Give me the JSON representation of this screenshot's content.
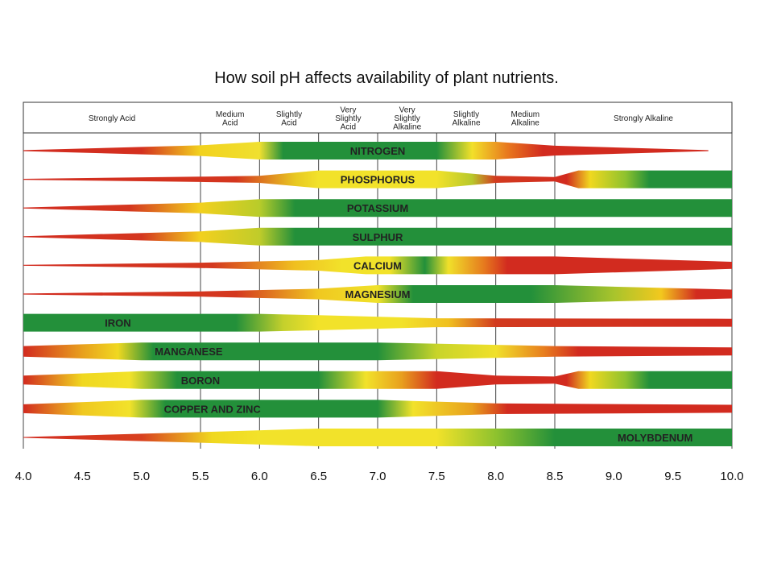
{
  "title": "How soil pH affects availability of plant nutrients.",
  "chart_data": {
    "type": "bar",
    "title": "How soil pH affects availability of plant nutrients.",
    "xlim": [
      4.0,
      10.0
    ],
    "x_ticks": [
      "4.0",
      "4.5",
      "5.0",
      "5.5",
      "6.0",
      "6.5",
      "7.0",
      "7.5",
      "8.0",
      "8.5",
      "9.0",
      "9.5",
      "10.0"
    ],
    "zones": [
      {
        "lines": [
          "Strongly Acid"
        ],
        "from": 4.0,
        "to": 5.5
      },
      {
        "lines": [
          "Medium",
          "Acid"
        ],
        "from": 5.5,
        "to": 6.0
      },
      {
        "lines": [
          "Slightly",
          "Acid"
        ],
        "from": 6.0,
        "to": 6.5
      },
      {
        "lines": [
          "Very",
          "Slightly",
          "Acid"
        ],
        "from": 6.5,
        "to": 7.0
      },
      {
        "lines": [
          "Very",
          "Slightly",
          "Alkaline"
        ],
        "from": 7.0,
        "to": 7.5
      },
      {
        "lines": [
          "Slightly",
          "Alkaline"
        ],
        "from": 7.5,
        "to": 8.0
      },
      {
        "lines": [
          "Medium",
          "Alkaline"
        ],
        "from": 8.0,
        "to": 8.5
      },
      {
        "lines": [
          "Strongly Alkaline"
        ],
        "from": 8.5,
        "to": 10.0
      }
    ],
    "series": [
      {
        "name": "NITROGEN",
        "label_ph": 7.0,
        "width": [
          [
            4.0,
            0.05
          ],
          [
            5.5,
            0.6
          ],
          [
            6.0,
            1
          ],
          [
            8.0,
            1
          ],
          [
            8.5,
            0.55
          ],
          [
            9.8,
            0.05
          ]
        ],
        "color": [
          [
            4.0,
            "#d22b1f"
          ],
          [
            5.0,
            "#d4301f"
          ],
          [
            5.5,
            "#f2d21e"
          ],
          [
            6.0,
            "#f0e030"
          ],
          [
            6.2,
            "#23903a"
          ],
          [
            7.5,
            "#23903a"
          ],
          [
            7.8,
            "#f2e02a"
          ],
          [
            8.1,
            "#e8781e"
          ],
          [
            8.4,
            "#d22b1f"
          ],
          [
            10.0,
            "#d22b1f"
          ]
        ]
      },
      {
        "name": "PHOSPHORUS",
        "label_ph": 7.0,
        "width": [
          [
            4.0,
            0.05
          ],
          [
            5.5,
            0.3
          ],
          [
            6.0,
            0.4
          ],
          [
            6.5,
            1
          ],
          [
            7.5,
            1
          ],
          [
            8.0,
            0.4
          ],
          [
            8.5,
            0.25
          ],
          [
            8.7,
            1
          ],
          [
            10.0,
            1
          ]
        ],
        "color": [
          [
            4.0,
            "#d22b1f"
          ],
          [
            5.8,
            "#d4361f"
          ],
          [
            6.3,
            "#e8c822"
          ],
          [
            6.5,
            "#f2e22a"
          ],
          [
            7.5,
            "#f2e22a"
          ],
          [
            7.8,
            "#b8c82c"
          ],
          [
            8.0,
            "#d23a1f"
          ],
          [
            8.6,
            "#d22b1f"
          ],
          [
            8.8,
            "#f0d820"
          ],
          [
            9.1,
            "#8ec22e"
          ],
          [
            9.3,
            "#23903a"
          ],
          [
            10.0,
            "#23903a"
          ]
        ]
      },
      {
        "name": "POTASSIUM",
        "label_ph": 7.0,
        "width": [
          [
            4.0,
            0.05
          ],
          [
            5.5,
            0.6
          ],
          [
            6.0,
            1
          ],
          [
            10.0,
            1
          ]
        ],
        "color": [
          [
            4.0,
            "#d22b1f"
          ],
          [
            4.9,
            "#d4361f"
          ],
          [
            5.5,
            "#f2d01e"
          ],
          [
            6.0,
            "#b8cc2a"
          ],
          [
            6.3,
            "#23903a"
          ],
          [
            10.0,
            "#23903a"
          ]
        ]
      },
      {
        "name": "SULPHUR",
        "label_ph": 7.0,
        "width": [
          [
            4.0,
            0.05
          ],
          [
            5.5,
            0.6
          ],
          [
            6.0,
            1
          ],
          [
            10.0,
            1
          ]
        ],
        "color": [
          [
            4.0,
            "#d22b1f"
          ],
          [
            5.0,
            "#d4361f"
          ],
          [
            5.5,
            "#f2d01e"
          ],
          [
            6.0,
            "#c0cc2a"
          ],
          [
            6.3,
            "#23903a"
          ],
          [
            10.0,
            "#23903a"
          ]
        ]
      },
      {
        "name": "CALCIUM",
        "label_ph": 7.0,
        "width": [
          [
            4.0,
            0.05
          ],
          [
            5.5,
            0.3
          ],
          [
            6.5,
            0.6
          ],
          [
            6.9,
            1
          ],
          [
            8.5,
            1
          ],
          [
            10.0,
            0.4
          ]
        ],
        "color": [
          [
            4.0,
            "#d22b1f"
          ],
          [
            5.6,
            "#d4381f"
          ],
          [
            6.3,
            "#f0c020"
          ],
          [
            6.7,
            "#f2e22a"
          ],
          [
            7.1,
            "#f2e22a"
          ],
          [
            7.4,
            "#23903a"
          ],
          [
            7.6,
            "#f0e02a"
          ],
          [
            7.9,
            "#e67a1e"
          ],
          [
            8.1,
            "#d22b1f"
          ],
          [
            10.0,
            "#d22b1f"
          ]
        ]
      },
      {
        "name": "MAGNESIUM",
        "label_ph": 7.0,
        "width": [
          [
            4.0,
            0.05
          ],
          [
            5.5,
            0.3
          ],
          [
            6.5,
            0.6
          ],
          [
            7.0,
            1
          ],
          [
            8.5,
            1
          ],
          [
            10.0,
            0.5
          ]
        ],
        "color": [
          [
            4.0,
            "#d22b1f"
          ],
          [
            5.8,
            "#d4381f"
          ],
          [
            6.5,
            "#f0c820"
          ],
          [
            7.0,
            "#f0e22a"
          ],
          [
            7.3,
            "#23903a"
          ],
          [
            8.3,
            "#23903a"
          ],
          [
            9.0,
            "#a8c42c"
          ],
          [
            9.4,
            "#f2c81e"
          ],
          [
            9.7,
            "#d22b1f"
          ],
          [
            10.0,
            "#d22b1f"
          ]
        ]
      },
      {
        "name": "IRON",
        "label_ph": 4.8,
        "width": [
          [
            4.0,
            1
          ],
          [
            6.0,
            1
          ],
          [
            6.5,
            0.85
          ],
          [
            7.5,
            0.5
          ],
          [
            10.0,
            0.45
          ]
        ],
        "color": [
          [
            4.0,
            "#23903a"
          ],
          [
            5.8,
            "#23903a"
          ],
          [
            6.2,
            "#c4d02c"
          ],
          [
            6.5,
            "#f2e22a"
          ],
          [
            7.2,
            "#f2e22a"
          ],
          [
            7.6,
            "#f0c020"
          ],
          [
            8.0,
            "#d23a1f"
          ],
          [
            10.0,
            "#d22b1f"
          ]
        ]
      },
      {
        "name": "MANGANESE",
        "label_ph": 5.4,
        "width": [
          [
            4.0,
            0.6
          ],
          [
            4.5,
            0.8
          ],
          [
            5.0,
            1
          ],
          [
            7.0,
            1
          ],
          [
            8.5,
            0.6
          ],
          [
            10.0,
            0.45
          ]
        ],
        "color": [
          [
            4.0,
            "#d22b1f"
          ],
          [
            4.5,
            "#e8a01e"
          ],
          [
            4.8,
            "#f0d820"
          ],
          [
            5.1,
            "#23903a"
          ],
          [
            7.0,
            "#23903a"
          ],
          [
            7.5,
            "#c8d42a"
          ],
          [
            8.0,
            "#f0e02a"
          ],
          [
            8.4,
            "#e8801e"
          ],
          [
            8.7,
            "#d22b1f"
          ],
          [
            10.0,
            "#d22b1f"
          ]
        ]
      },
      {
        "name": "BORON",
        "label_ph": 5.5,
        "width": [
          [
            4.0,
            0.5
          ],
          [
            5.0,
            1
          ],
          [
            7.5,
            1
          ],
          [
            8.0,
            0.5
          ],
          [
            8.5,
            0.4
          ],
          [
            8.7,
            1
          ],
          [
            10.0,
            1
          ]
        ],
        "color": [
          [
            4.0,
            "#d22b1f"
          ],
          [
            4.5,
            "#f0d820"
          ],
          [
            4.9,
            "#f2e22a"
          ],
          [
            5.3,
            "#23903a"
          ],
          [
            6.5,
            "#23903a"
          ],
          [
            6.9,
            "#f2e22a"
          ],
          [
            7.2,
            "#e8a01e"
          ],
          [
            7.5,
            "#d22b1f"
          ],
          [
            8.6,
            "#d22b1f"
          ],
          [
            8.8,
            "#f0d820"
          ],
          [
            9.1,
            "#8ec22e"
          ],
          [
            9.3,
            "#23903a"
          ],
          [
            10.0,
            "#23903a"
          ]
        ]
      },
      {
        "name": "COPPER AND ZINC",
        "label_ph": 5.6,
        "width": [
          [
            4.0,
            0.5
          ],
          [
            5.0,
            1
          ],
          [
            7.0,
            1
          ],
          [
            8.0,
            0.6
          ],
          [
            10.0,
            0.45
          ]
        ],
        "color": [
          [
            4.0,
            "#d22b1f"
          ],
          [
            4.5,
            "#f0c820"
          ],
          [
            4.9,
            "#f2e22a"
          ],
          [
            5.2,
            "#23903a"
          ],
          [
            7.0,
            "#23903a"
          ],
          [
            7.3,
            "#f2e22a"
          ],
          [
            7.8,
            "#e8a01e"
          ],
          [
            8.1,
            "#d22b1f"
          ],
          [
            10.0,
            "#d22b1f"
          ]
        ]
      },
      {
        "name": "MOLYBDENUM",
        "label_ph": 9.35,
        "width": [
          [
            4.0,
            0.05
          ],
          [
            5.5,
            0.6
          ],
          [
            6.5,
            1
          ],
          [
            10.0,
            1
          ]
        ],
        "color": [
          [
            4.0,
            "#d22b1f"
          ],
          [
            5.0,
            "#d8401f"
          ],
          [
            5.6,
            "#f0d820"
          ],
          [
            6.0,
            "#f2e22a"
          ],
          [
            7.5,
            "#f2e22a"
          ],
          [
            8.0,
            "#8ec22e"
          ],
          [
            8.5,
            "#23903a"
          ],
          [
            10.0,
            "#23903a"
          ]
        ]
      }
    ]
  }
}
